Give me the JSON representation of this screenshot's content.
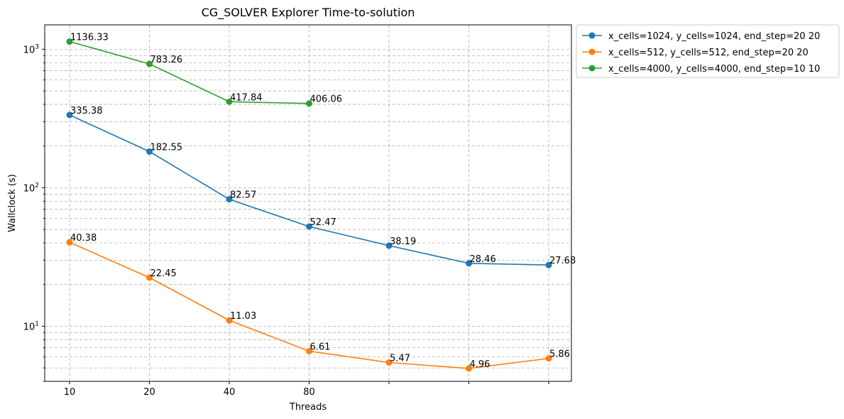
{
  "chart_data": {
    "type": "line",
    "title": "CG_SOLVER Explorer Time-to-solution",
    "xlabel": "Threads",
    "ylabel": "Wallclock (s)",
    "yscale": "log",
    "ylim": [
      4,
      1500
    ],
    "grid": true,
    "grid_style": "dashed",
    "legend_position": "outside-top-right",
    "x_positions": [
      1,
      2,
      3,
      4,
      5,
      6,
      7
    ],
    "x_ticks": [
      {
        "pos": 1,
        "label": "10"
      },
      {
        "pos": 2,
        "label": "20"
      },
      {
        "pos": 3,
        "label": "40"
      },
      {
        "pos": 4,
        "label": "80"
      }
    ],
    "y_ticks": [
      {
        "value": 10,
        "label_base": "10",
        "label_exp": "1"
      },
      {
        "value": 100,
        "label_base": "10",
        "label_exp": "2"
      },
      {
        "value": 1000,
        "label_base": "10",
        "label_exp": "3"
      }
    ],
    "series": [
      {
        "name": "x_cells=1024, y_cells=1024, end_step=20 20",
        "color": "#1f77b4",
        "values": [
          335.38,
          182.55,
          82.57,
          52.47,
          38.19,
          28.46,
          27.68
        ],
        "labels": [
          "335.38",
          "182.55",
          "82.57",
          "52.47",
          "38.19",
          "28.46",
          "27.68"
        ]
      },
      {
        "name": "x_cells=512, y_cells=512, end_step=20 20",
        "color": "#ff7f0e",
        "values": [
          40.38,
          22.45,
          11.03,
          6.61,
          5.47,
          4.96,
          5.86
        ],
        "labels": [
          "40.38",
          "22.45",
          "11.03",
          "6.61",
          "5.47",
          "4.96",
          "5.86"
        ]
      },
      {
        "name": "x_cells=4000, y_cells=4000, end_step=10 10",
        "color": "#2ca02c",
        "values": [
          1136.33,
          783.26,
          417.84,
          406.06
        ],
        "labels": [
          "1136.33",
          "783.26",
          "417.84",
          "406.06"
        ]
      }
    ]
  }
}
